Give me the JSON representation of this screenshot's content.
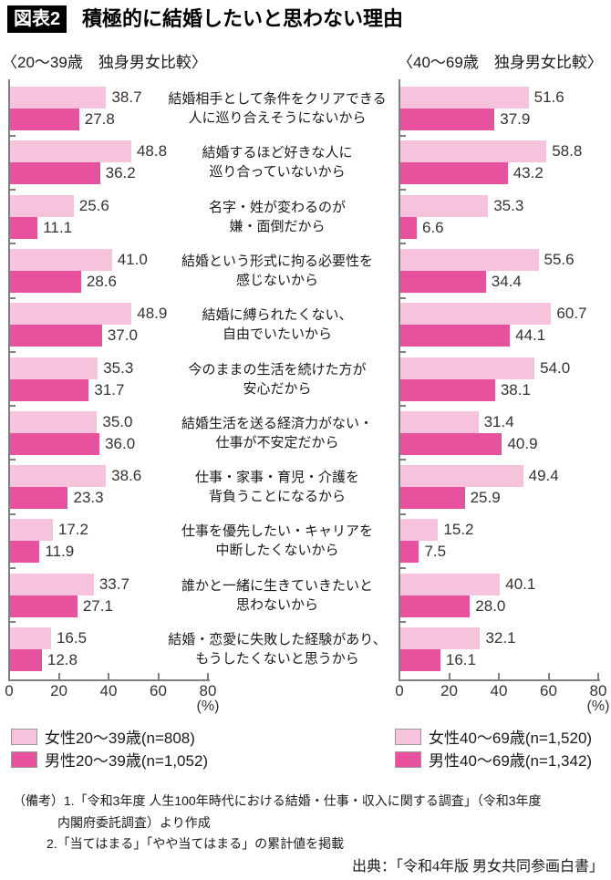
{
  "title": {
    "tag": "図表2",
    "text": "積極的に結婚したいと思わない理由"
  },
  "chart_data": {
    "type": "bar",
    "orientation": "horizontal",
    "axis": {
      "ticks": [
        0,
        20,
        40,
        60,
        80
      ],
      "max": 80,
      "unit_label": "(%)"
    },
    "categories": [
      [
        "結婚相手として条件をクリアできる",
        "人に巡り合えそうにないから"
      ],
      [
        "結婚するほど好きな人に",
        "巡り合っていないから"
      ],
      [
        "名字・姓が変わるのが",
        "嫌・面倒だから"
      ],
      [
        "結婚という形式に拘る必要性を",
        "感じないから"
      ],
      [
        "結婚に縛られたくない、",
        "自由でいたいから"
      ],
      [
        "今のままの生活を続けた方が",
        "安心だから"
      ],
      [
        "結婚生活を送る経済力がない・",
        "仕事が不安定だから"
      ],
      [
        "仕事・家事・育児・介護を",
        "背負うことになるから"
      ],
      [
        "仕事を優先したい・キャリアを",
        "中断したくないから"
      ],
      [
        "誰かと一緒に生きていきたいと",
        "思わないから"
      ],
      [
        "結婚・恋愛に失敗した経験があり、",
        "もうしたくないと思うから"
      ]
    ],
    "panels": [
      {
        "id": "left",
        "header": "〈20〜39歳　独身男女比較〉",
        "series": [
          {
            "name": "女性20〜39歳(n=808)",
            "color": "#f7c3dc",
            "values": [
              38.7,
              48.8,
              25.6,
              41.0,
              48.9,
              35.3,
              35.0,
              38.6,
              17.2,
              33.7,
              16.5
            ]
          },
          {
            "name": "男性20〜39歳(n=1,052)",
            "color": "#e8519d",
            "values": [
              27.8,
              36.2,
              11.1,
              28.6,
              37.0,
              31.7,
              36.0,
              23.3,
              11.9,
              27.1,
              12.8
            ]
          }
        ]
      },
      {
        "id": "right",
        "header": "〈40〜69歳　独身男女比較〉",
        "series": [
          {
            "name": "女性40〜69歳(n=1,520)",
            "color": "#f7c3dc",
            "values": [
              51.6,
              58.8,
              35.3,
              55.6,
              60.7,
              54.0,
              31.4,
              49.4,
              15.2,
              40.1,
              32.1
            ]
          },
          {
            "name": "男性40〜69歳(n=1,342)",
            "color": "#e8519d",
            "values": [
              37.9,
              43.2,
              6.6,
              34.4,
              44.1,
              38.1,
              40.9,
              25.9,
              7.5,
              28.0,
              16.1
            ]
          }
        ]
      }
    ]
  },
  "notes": {
    "line1": "（備考）1.「令和3年度 人生100年時代における結婚・仕事・収入に関する調査」（令和3年度",
    "line2": "内閣府委託調査）より作成",
    "line3": "2.「当てはまる」「やや当てはまる」の累計値を掲載"
  },
  "source": "出典：「令和4年版 男女共同参画白書」",
  "colors": {
    "female": "#f7c3dc",
    "male": "#e8519d",
    "axis": "#7f7f7f"
  }
}
